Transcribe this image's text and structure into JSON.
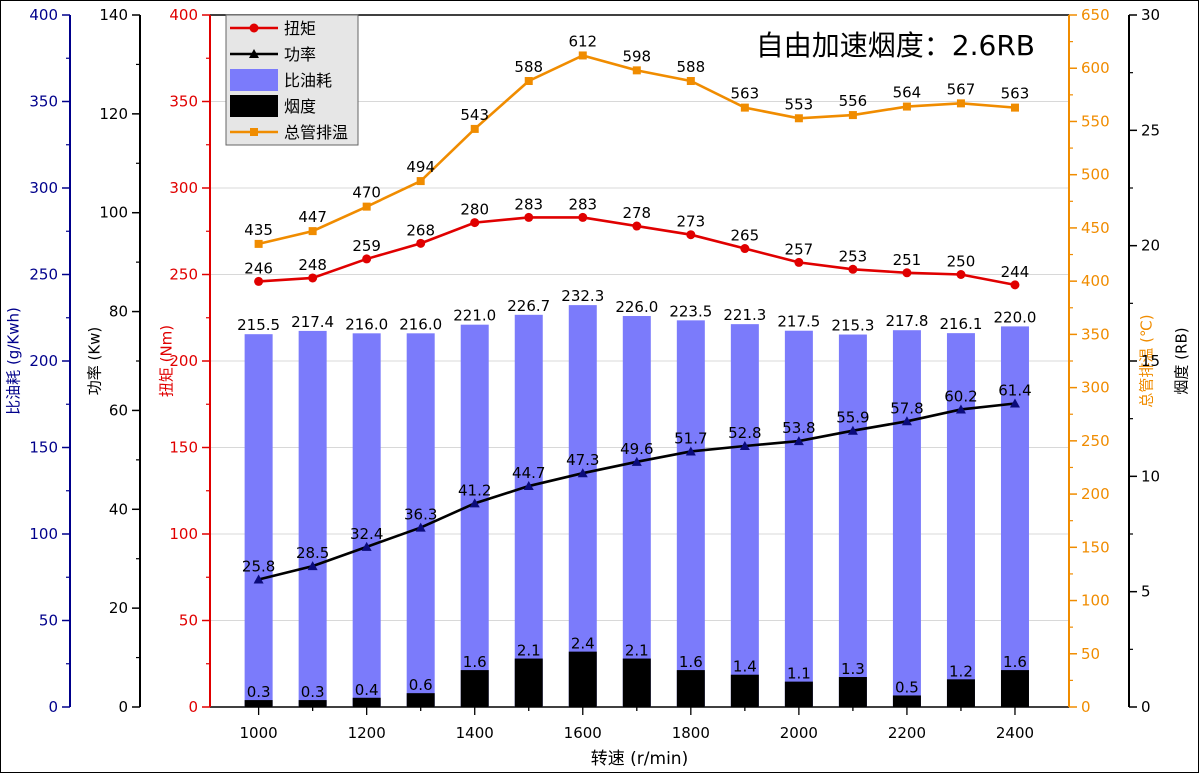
{
  "chart_data": {
    "type": "bar",
    "title": "自由加速烟度：2.6RB",
    "xlabel": "转速 (r/min)",
    "x": [
      1000,
      1100,
      1200,
      1300,
      1400,
      1500,
      1600,
      1700,
      1800,
      1900,
      2000,
      2100,
      2200,
      2300,
      2400
    ],
    "x_ticks": [
      "1000",
      "1200",
      "1400",
      "1600",
      "1800",
      "2000",
      "2200",
      "2400"
    ],
    "legend_position": "top-left",
    "grid": "horizontal",
    "series": [
      {
        "name": "扭矩",
        "type": "line",
        "marker": "circle",
        "color": "#e00000",
        "axis": "torque",
        "values": [
          246,
          248,
          259,
          268,
          280,
          283,
          283,
          278,
          273,
          265,
          257,
          253,
          251,
          250,
          244
        ],
        "labels": [
          "246",
          "248",
          "259",
          "268",
          "280",
          "283",
          "283",
          "278",
          "273",
          "265",
          "257",
          "253",
          "251",
          "250",
          "244"
        ]
      },
      {
        "name": "功率",
        "type": "line",
        "marker": "triangle",
        "color": "#000000",
        "axis": "power",
        "values": [
          25.8,
          28.5,
          32.4,
          36.3,
          41.2,
          44.7,
          47.3,
          49.6,
          51.7,
          52.8,
          53.8,
          55.9,
          57.8,
          60.2,
          61.4
        ],
        "labels": [
          "25.8",
          "28.5",
          "32.4",
          "36.3",
          "41.2",
          "44.7",
          "47.3",
          "49.6",
          "51.7",
          "52.8",
          "53.8",
          "55.9",
          "57.8",
          "60.2",
          "61.4"
        ]
      },
      {
        "name": "比油耗",
        "type": "bar",
        "color": "#7b7bfb",
        "axis": "bsfc",
        "values": [
          215.5,
          217.4,
          216.0,
          216.0,
          221.0,
          226.7,
          232.3,
          226.0,
          223.5,
          221.3,
          217.5,
          215.3,
          217.8,
          216.1,
          220.0
        ],
        "labels": [
          "215.5",
          "217.4",
          "216.0",
          "216.0",
          "221.0",
          "226.7",
          "232.3",
          "226.0",
          "223.5",
          "221.3",
          "217.5",
          "215.3",
          "217.8",
          "216.1",
          "220.0"
        ]
      },
      {
        "name": "烟度",
        "type": "bar",
        "color": "#000000",
        "axis": "smoke",
        "values": [
          0.3,
          0.3,
          0.4,
          0.6,
          1.6,
          2.1,
          2.4,
          2.1,
          1.6,
          1.4,
          1.1,
          1.3,
          0.5,
          1.2,
          1.6
        ],
        "labels": [
          "0.3",
          "0.3",
          "0.4",
          "0.6",
          "1.6",
          "2.1",
          "2.4",
          "2.1",
          "1.6",
          "1.4",
          "1.1",
          "1.3",
          "0.5",
          "1.2",
          "1.6"
        ]
      },
      {
        "name": "总管排温",
        "type": "line",
        "marker": "square",
        "color": "#f08c00",
        "axis": "exhaust",
        "values": [
          435,
          447,
          470,
          494,
          543,
          588,
          612,
          598,
          588,
          563,
          553,
          556,
          564,
          567,
          563
        ],
        "labels": [
          "435",
          "447",
          "470",
          "494",
          "543",
          "588",
          "612",
          "598",
          "588",
          "563",
          "553",
          "556",
          "564",
          "567",
          "563"
        ]
      }
    ],
    "axes": {
      "bsfc": {
        "label": "比油耗 (g/Kwh)",
        "side": "left",
        "color": "#00008b",
        "range": [
          0,
          400
        ],
        "ticks": [
          "0",
          "50",
          "100",
          "150",
          "200",
          "250",
          "300",
          "350",
          "400"
        ]
      },
      "power": {
        "label": "功率 (Kw)",
        "side": "left",
        "color": "#000000",
        "range": [
          0,
          140
        ],
        "ticks": [
          "0",
          "20",
          "40",
          "60",
          "80",
          "100",
          "120",
          "140"
        ]
      },
      "torque": {
        "label": "扭矩 (Nm)",
        "side": "left",
        "color": "#e00000",
        "range": [
          0,
          400
        ],
        "ticks": [
          "0",
          "50",
          "100",
          "150",
          "200",
          "250",
          "300",
          "350",
          "400"
        ]
      },
      "exhaust": {
        "label": "总管排温 (℃)",
        "side": "right",
        "color": "#f08c00",
        "range": [
          0,
          650
        ],
        "ticks": [
          "0",
          "50",
          "100",
          "150",
          "200",
          "250",
          "300",
          "350",
          "400",
          "450",
          "500",
          "550",
          "600",
          "650"
        ]
      },
      "smoke": {
        "label": "烟度 (RB)",
        "side": "right",
        "color": "#000000",
        "range": [
          0,
          30
        ],
        "ticks": [
          "0",
          "5",
          "10",
          "15",
          "20",
          "25",
          "30"
        ]
      }
    }
  }
}
